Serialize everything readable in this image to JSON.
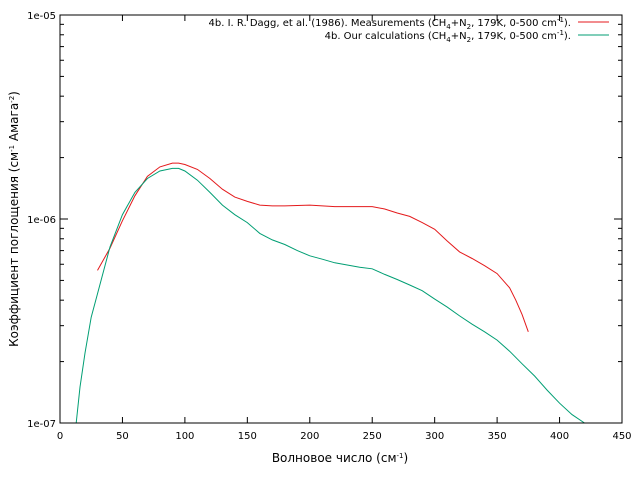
{
  "chart_data": {
    "type": "line",
    "xlabel": "Волновое число (см⁻¹)",
    "ylabel": "Коэффициент поглощения (см⁻¹ Амага⁻²)",
    "xlim": [
      0,
      450
    ],
    "ylim": [
      1e-07,
      1e-05
    ],
    "yscale": "log",
    "grid": false,
    "legend_position": "top-right",
    "x_ticks": [
      "0",
      "50",
      "100",
      "150",
      "200",
      "250",
      "300",
      "350",
      "400",
      "450"
    ],
    "y_ticks": [
      "1e-07",
      "1e-06",
      "1e-05"
    ],
    "series": [
      {
        "name": "4b. I. R. Dagg, et al. (1986). Measurements (CH₄+N₂, 179K, 0-500 cm⁻¹).",
        "color": "#e41a1c",
        "x": [
          30,
          40,
          50,
          60,
          70,
          80,
          90,
          95,
          100,
          110,
          120,
          130,
          140,
          150,
          160,
          170,
          180,
          200,
          220,
          240,
          250,
          260,
          270,
          280,
          290,
          300,
          310,
          320,
          330,
          340,
          350,
          360,
          365,
          370,
          375
        ],
        "y": [
          5.6e-07,
          7.2e-07,
          9.8e-07,
          1.3e-06,
          1.62e-06,
          1.8e-06,
          1.88e-06,
          1.88e-06,
          1.85e-06,
          1.75e-06,
          1.58e-06,
          1.4e-06,
          1.28e-06,
          1.22e-06,
          1.17e-06,
          1.16e-06,
          1.16e-06,
          1.17e-06,
          1.15e-06,
          1.15e-06,
          1.15e-06,
          1.12e-06,
          1.07e-06,
          1.03e-06,
          9.6e-07,
          8.9e-07,
          7.8e-07,
          6.9e-07,
          6.4e-07,
          5.9e-07,
          5.4e-07,
          4.6e-07,
          4e-07,
          3.4e-07,
          2.8e-07
        ]
      },
      {
        "name": "4b. Our  calculations (CH₄+N₂, 179K, 0-500 cm⁻¹).",
        "color": "#009e73",
        "x": [
          13,
          16,
          20,
          25,
          30,
          40,
          50,
          60,
          70,
          80,
          90,
          95,
          100,
          110,
          120,
          130,
          140,
          150,
          160,
          170,
          180,
          190,
          200,
          210,
          220,
          230,
          240,
          250,
          260,
          270,
          280,
          290,
          300,
          310,
          320,
          330,
          340,
          350,
          360,
          370,
          380,
          390,
          400,
          410,
          420
        ],
        "y": [
          1e-07,
          1.5e-07,
          2.2e-07,
          3.3e-07,
          4.3e-07,
          7.3e-07,
          1.05e-06,
          1.35e-06,
          1.58e-06,
          1.72e-06,
          1.77e-06,
          1.77e-06,
          1.72e-06,
          1.55e-06,
          1.35e-06,
          1.17e-06,
          1.05e-06,
          9.6e-07,
          8.5e-07,
          7.9e-07,
          7.5e-07,
          7e-07,
          6.6e-07,
          6.35e-07,
          6.1e-07,
          5.95e-07,
          5.8e-07,
          5.7e-07,
          5.35e-07,
          5.05e-07,
          4.75e-07,
          4.45e-07,
          4.05e-07,
          3.7e-07,
          3.35e-07,
          3.05e-07,
          2.8e-07,
          2.55e-07,
          2.25e-07,
          1.95e-07,
          1.7e-07,
          1.45e-07,
          1.25e-07,
          1.1e-07,
          1e-07
        ]
      }
    ]
  }
}
